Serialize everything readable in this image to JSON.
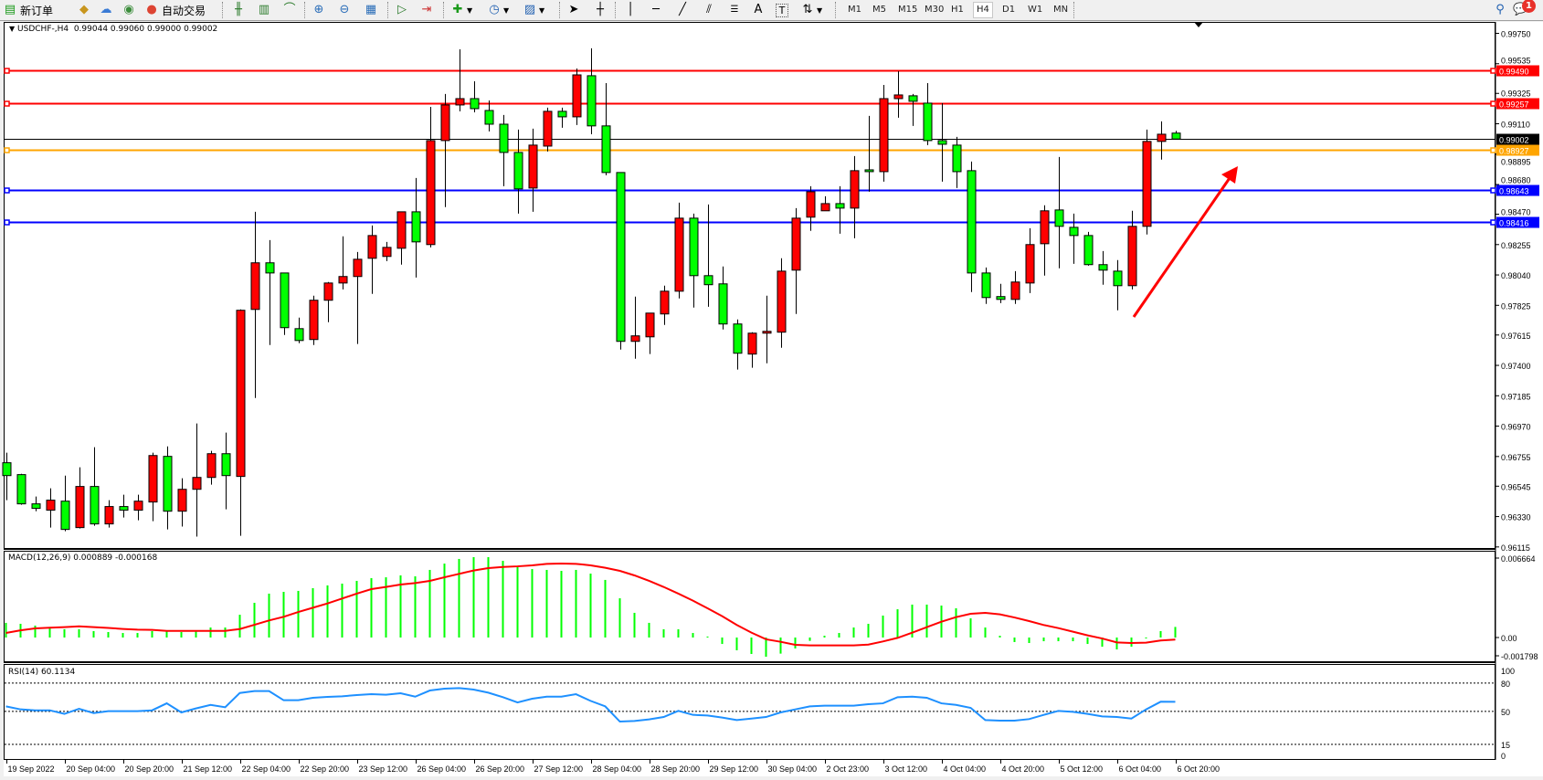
{
  "toolbar": {
    "new_order": "新订单",
    "auto_trading": "自动交易",
    "icons": [
      "new-order-icon",
      "metaeditor-icon",
      "market-icon",
      "signals-icon",
      "auto-trading-icon",
      "bar-chart-icon",
      "candlestick-icon",
      "line-chart-icon",
      "zoom-in-icon",
      "zoom-out-icon",
      "tile-windows-icon",
      "autoscroll-icon",
      "chart-shift-icon",
      "indicators-icon",
      "periods-icon",
      "templates-icon",
      "cursor-icon",
      "crosshair-icon",
      "vertical-line-icon",
      "horizontal-line-icon",
      "trendline-icon",
      "equidistant-channel-icon",
      "fibonacci-icon",
      "text-icon",
      "text-label-icon",
      "arrows-icon",
      "search-icon",
      "notifications-icon"
    ],
    "text_tool": "A",
    "timeframes": [
      "M1",
      "M5",
      "M15",
      "M30",
      "H1",
      "H4",
      "D1",
      "W1",
      "MN"
    ],
    "selected_timeframe": "H4",
    "notification_count": "1"
  },
  "chart": {
    "title": "USDCHF-,H4",
    "ohlc_text": "0.99044 0.99060 0.99000 0.99002",
    "symbol": "USDCHF-",
    "timeframe": "H4",
    "colors": {
      "bull": "#ff0000",
      "bear": "#00ff00",
      "macd_hist": "#00ff00",
      "macd_signal": "#ff0000",
      "rsi": "#1e90ff",
      "arrow": "#ff0000"
    },
    "price_ticks": [
      "0.99750",
      "0.99535",
      "0.99325",
      "0.99110",
      "0.98895",
      "0.98680",
      "0.98470",
      "0.98255",
      "0.98040",
      "0.97825",
      "0.97615",
      "0.97400",
      "0.97185",
      "0.96970",
      "0.96755",
      "0.96545",
      "0.96330",
      "0.96115"
    ],
    "levels": [
      {
        "label": "0.99490",
        "color": "#ff0000"
      },
      {
        "label": "0.99257",
        "color": "#ff0000"
      },
      {
        "label": "0.99002",
        "color": "#000000",
        "current_price": true
      },
      {
        "label": "0.98927",
        "color": "#ffa500"
      },
      {
        "label": "0.98643",
        "color": "#0000ff"
      },
      {
        "label": "0.98416",
        "color": "#0000ff"
      }
    ],
    "time_labels": [
      "19 Sep 2022",
      "20 Sep 04:00",
      "20 Sep 20:00",
      "21 Sep 12:00",
      "22 Sep 04:00",
      "22 Sep 20:00",
      "23 Sep 12:00",
      "26 Sep 04:00",
      "26 Sep 20:00",
      "27 Sep 12:00",
      "28 Sep 04:00",
      "28 Sep 20:00",
      "29 Sep 12:00",
      "30 Sep 04:00",
      "2 Oct 23:00",
      "3 Oct 12:00",
      "4 Oct 04:00",
      "4 Oct 20:00",
      "5 Oct 12:00",
      "6 Oct 04:00",
      "6 Oct 20:00"
    ],
    "candles_ohlc": [
      [
        0.96711,
        0.96782,
        0.96446,
        0.9662
      ],
      [
        0.96627,
        0.96633,
        0.96414,
        0.9642
      ],
      [
        0.9642,
        0.96472,
        0.96368,
        0.96388
      ],
      [
        0.96375,
        0.9653,
        0.96252,
        0.96446
      ],
      [
        0.96439,
        0.9662,
        0.96226,
        0.96239
      ],
      [
        0.96252,
        0.96679,
        0.96246,
        0.96543
      ],
      [
        0.96543,
        0.96821,
        0.96265,
        0.96278
      ],
      [
        0.96278,
        0.96446,
        0.96252,
        0.96401
      ],
      [
        0.96401,
        0.96485,
        0.96323,
        0.96375
      ],
      [
        0.96375,
        0.96485,
        0.96304,
        0.96439
      ],
      [
        0.96433,
        0.96782,
        0.96297,
        0.96762
      ],
      [
        0.96756,
        0.96827,
        0.96239,
        0.96368
      ],
      [
        0.96368,
        0.96601,
        0.96259,
        0.96523
      ],
      [
        0.96523,
        0.96989,
        0.96188,
        0.96607
      ],
      [
        0.96607,
        0.96795,
        0.96556,
        0.96775
      ],
      [
        0.96775,
        0.96924,
        0.96381,
        0.9662
      ],
      [
        0.96614,
        0.97796,
        0.96194,
        0.9779
      ],
      [
        0.97796,
        0.98487,
        0.97169,
        0.98126
      ],
      [
        0.98126,
        0.98287,
        0.97544,
        0.98054
      ],
      [
        0.98054,
        0.98054,
        0.97615,
        0.97667
      ],
      [
        0.9766,
        0.97738,
        0.97557,
        0.97576
      ],
      [
        0.97583,
        0.97893,
        0.97544,
        0.97861
      ],
      [
        0.97861,
        0.9799,
        0.97706,
        0.97983
      ],
      [
        0.97983,
        0.98313,
        0.97938,
        0.98029
      ],
      [
        0.98029,
        0.98203,
        0.97551,
        0.98151
      ],
      [
        0.98158,
        0.9839,
        0.97906,
        0.98319
      ],
      [
        0.98171,
        0.98274,
        0.98138,
        0.98235
      ],
      [
        0.98229,
        0.98487,
        0.98113,
        0.98487
      ],
      [
        0.98487,
        0.98726,
        0.98022,
        0.98274
      ],
      [
        0.98255,
        0.9923,
        0.98235,
        0.98991
      ],
      [
        0.98991,
        0.99321,
        0.9852,
        0.99243
      ],
      [
        0.99243,
        0.99637,
        0.99198,
        0.99288
      ],
      [
        0.99288,
        0.99411,
        0.99191,
        0.99217
      ],
      [
        0.99204,
        0.99275,
        0.99056,
        0.99107
      ],
      [
        0.99107,
        0.99172,
        0.98668,
        0.98907
      ],
      [
        0.98907,
        0.99069,
        0.98474,
        0.98649
      ],
      [
        0.98655,
        0.99075,
        0.98487,
        0.98959
      ],
      [
        0.98952,
        0.99224,
        0.98914,
        0.99198
      ],
      [
        0.99198,
        0.99224,
        0.99082,
        0.99159
      ],
      [
        0.99159,
        0.99501,
        0.99101,
        0.99456
      ],
      [
        0.9945,
        0.99644,
        0.99036,
        0.99095
      ],
      [
        0.99095,
        0.99398,
        0.98746,
        0.98765
      ],
      [
        0.98765,
        0.98765,
        0.97512,
        0.9757
      ],
      [
        0.9757,
        0.97887,
        0.97447,
        0.97609
      ],
      [
        0.97602,
        0.9777,
        0.9748,
        0.9777
      ],
      [
        0.97764,
        0.97964,
        0.97686,
        0.97925
      ],
      [
        0.97925,
        0.98552,
        0.97874,
        0.98442
      ],
      [
        0.98442,
        0.98474,
        0.97809,
        0.98035
      ],
      [
        0.98035,
        0.98539,
        0.97815,
        0.97971
      ],
      [
        0.97977,
        0.981,
        0.97654,
        0.97693
      ],
      [
        0.97693,
        0.97725,
        0.9737,
        0.97486
      ],
      [
        0.9748,
        0.97635,
        0.97383,
        0.97628
      ],
      [
        0.97628,
        0.97893,
        0.97415,
        0.97641
      ],
      [
        0.97635,
        0.98158,
        0.97525,
        0.98067
      ],
      [
        0.98074,
        0.98513,
        0.97764,
        0.98442
      ],
      [
        0.98449,
        0.98668,
        0.98352,
        0.98629
      ],
      [
        0.98494,
        0.98597,
        0.98494,
        0.98545
      ],
      [
        0.98545,
        0.98668,
        0.98332,
        0.98513
      ],
      [
        0.98513,
        0.98881,
        0.983,
        0.98778
      ],
      [
        0.98784,
        0.99166,
        0.98629,
        0.98771
      ],
      [
        0.98771,
        0.99385,
        0.987,
        0.99288
      ],
      [
        0.99288,
        0.99482,
        0.99153,
        0.99314
      ],
      [
        0.99308,
        0.99321,
        0.99095,
        0.99269
      ],
      [
        0.99256,
        0.99398,
        0.98959,
        0.98991
      ],
      [
        0.98991,
        0.99256,
        0.987,
        0.98965
      ],
      [
        0.98959,
        0.99017,
        0.98655,
        0.98771
      ],
      [
        0.98778,
        0.98843,
        0.97919,
        0.98054
      ],
      [
        0.98054,
        0.98093,
        0.97835,
        0.9788
      ],
      [
        0.97887,
        0.97977,
        0.97841,
        0.97867
      ],
      [
        0.97867,
        0.98067,
        0.97835,
        0.9799
      ],
      [
        0.97983,
        0.98371,
        0.97912,
        0.98255
      ],
      [
        0.98261,
        0.98533,
        0.98035,
        0.98494
      ],
      [
        0.985,
        0.98875,
        0.98087,
        0.98384
      ],
      [
        0.98377,
        0.98474,
        0.98119,
        0.98319
      ],
      [
        0.98319,
        0.98345,
        0.98106,
        0.98113
      ],
      [
        0.98113,
        0.98209,
        0.97971,
        0.98074
      ],
      [
        0.98067,
        0.98145,
        0.9779,
        0.97964
      ],
      [
        0.97964,
        0.98494,
        0.97938,
        0.98384
      ],
      [
        0.98384,
        0.99069,
        0.98326,
        0.98985
      ],
      [
        0.98985,
        0.99127,
        0.98856,
        0.99036
      ],
      [
        0.99044,
        0.9906,
        0.99,
        0.99002
      ]
    ]
  },
  "macd": {
    "title": "MACD(12,26,9) 0.000889 -0.000168",
    "axis_labels": [
      "0.006664",
      "0.00",
      "-0.001798"
    ],
    "histogram": [
      0.00123,
      0.00115,
      0.001,
      0.00079,
      0.00069,
      0.00069,
      0.00054,
      0.00046,
      0.00038,
      0.00038,
      0.00054,
      0.00054,
      0.00046,
      0.00054,
      0.00084,
      0.00084,
      0.00191,
      0.00291,
      0.00368,
      0.00383,
      0.00391,
      0.00414,
      0.00437,
      0.00452,
      0.00475,
      0.00498,
      0.00505,
      0.00521,
      0.00513,
      0.00567,
      0.0062,
      0.00659,
      0.00674,
      0.00674,
      0.00643,
      0.0059,
      0.00574,
      0.00567,
      0.00559,
      0.00567,
      0.00536,
      0.00483,
      0.00329,
      0.00207,
      0.00123,
      0.00069,
      0.00069,
      0.00038,
      8e-05,
      -0.00054,
      -0.00107,
      -0.00138,
      -0.00161,
      -0.00135,
      -0.00092,
      -0.00028,
      0.00015,
      0.00038,
      0.00084,
      0.00115,
      0.00184,
      0.00237,
      0.00276,
      0.00276,
      0.00268,
      0.00245,
      0.00161,
      0.00084,
      0.00015,
      -0.00038,
      -0.00046,
      -0.00031,
      -0.00031,
      -0.00031,
      -0.00054,
      -0.00077,
      -0.001,
      -0.00077,
      -5e-05,
      0.00054,
      0.000889
    ],
    "signal": [
      0.00038,
      0.0006,
      0.00077,
      0.00082,
      0.00087,
      0.00094,
      0.00087,
      0.0008,
      0.00072,
      0.00066,
      0.00064,
      0.00056,
      0.00056,
      0.00056,
      0.00056,
      0.00056,
      0.00071,
      0.00107,
      0.00143,
      0.00174,
      0.00214,
      0.0025,
      0.00286,
      0.00327,
      0.00368,
      0.00406,
      0.00424,
      0.00444,
      0.00457,
      0.00475,
      0.00505,
      0.00534,
      0.00562,
      0.00582,
      0.00592,
      0.00597,
      0.00605,
      0.00618,
      0.0062,
      0.00618,
      0.00605,
      0.00585,
      0.00559,
      0.00521,
      0.00475,
      0.00424,
      0.00368,
      0.00309,
      0.00245,
      0.00179,
      0.00105,
      0.00041,
      -0.00015,
      -0.00036,
      -0.00061,
      -0.00066,
      -0.00066,
      -0.00066,
      -0.00066,
      -0.00059,
      -0.00033,
      -3e-05,
      0.00041,
      0.00087,
      0.00133,
      0.00171,
      0.00199,
      0.00207,
      0.00194,
      0.00168,
      0.00138,
      0.00105,
      0.00079,
      0.00049,
      0.00018,
      -8e-05,
      -0.00041,
      -0.00046,
      -0.00043,
      -0.00025,
      -0.000168
    ]
  },
  "rsi": {
    "title": "RSI(14) 60.1134",
    "axis_labels": [
      "100",
      "80",
      "50",
      "15",
      "0"
    ],
    "levels": [
      80,
      50,
      15
    ],
    "values": [
      55.3,
      52.1,
      51.1,
      51.1,
      47.3,
      52.7,
      48.2,
      50.2,
      50.2,
      50.2,
      51.1,
      58.5,
      48.9,
      53.1,
      56.9,
      54.4,
      69.5,
      71.5,
      71.5,
      61.8,
      61.8,
      64.4,
      65.3,
      66.0,
      67.3,
      68.2,
      67.6,
      69.2,
      65.6,
      72.1,
      74.0,
      74.7,
      73.1,
      69.8,
      65.0,
      59.5,
      63.4,
      65.6,
      65.6,
      68.2,
      61.1,
      55.3,
      39.2,
      39.8,
      41.5,
      44.0,
      50.5,
      46.3,
      45.6,
      43.4,
      40.8,
      42.4,
      44.0,
      48.9,
      52.1,
      55.3,
      56.0,
      56.0,
      56.0,
      57.6,
      58.5,
      65.0,
      65.6,
      64.4,
      58.5,
      56.9,
      53.7,
      40.8,
      40.2,
      40.2,
      41.8,
      46.3,
      50.5,
      49.5,
      47.3,
      44.7,
      44.0,
      42.4,
      52.1,
      60.2,
      60.1
    ]
  }
}
